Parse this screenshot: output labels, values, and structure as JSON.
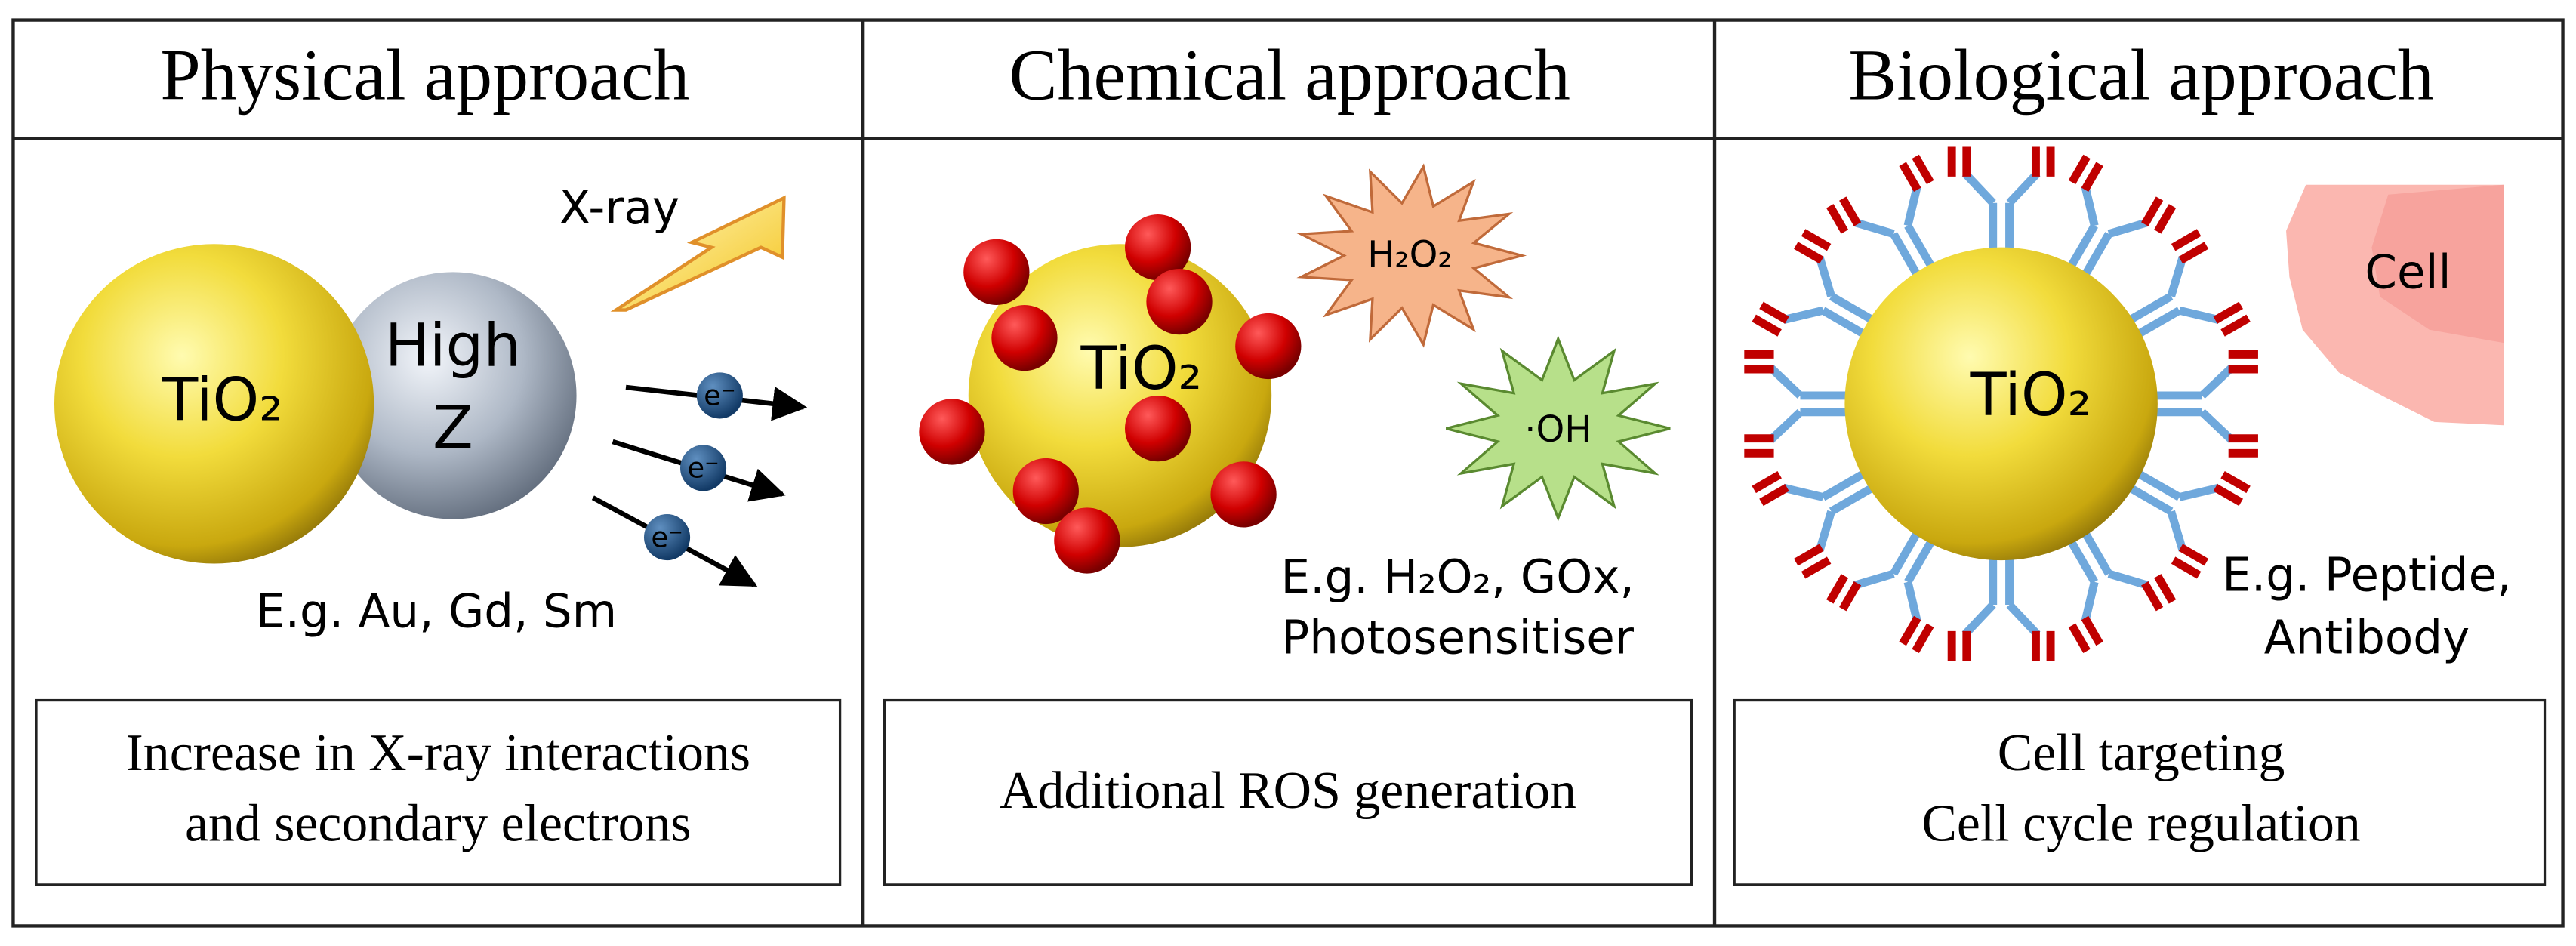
{
  "panels": [
    {
      "title": "Physical approach",
      "core": "TiO₂",
      "partner": [
        "High",
        "Z"
      ],
      "radiation": "X-ray",
      "electrons": [
        "e⁻",
        "e⁻",
        "e⁻"
      ],
      "examples": [
        "E.g. Au, Gd, Sm"
      ],
      "box": [
        "Increase in X-ray interactions",
        "and secondary electrons"
      ]
    },
    {
      "title": "Chemical approach",
      "core": "TiO₂",
      "species": [
        "H₂O₂",
        "·OH"
      ],
      "examples": [
        "E.g. H₂O₂, GOx,",
        "Photosensitiser"
      ],
      "box": [
        "Additional ROS generation"
      ]
    },
    {
      "title": "Biological approach",
      "core": "TiO₂",
      "target": "Cell",
      "examples": [
        "E.g. Peptide,",
        "Antibody"
      ],
      "box": [
        "Cell targeting",
        "Cell cycle regulation"
      ]
    }
  ]
}
